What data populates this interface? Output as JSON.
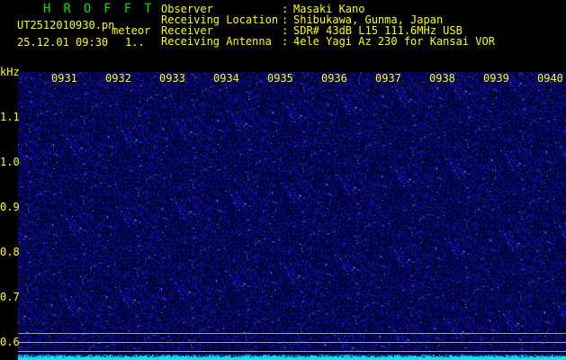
{
  "app_title": "HROFFT",
  "file_name": "UT2512010930.pn",
  "mode_label": "meteor",
  "datetime": "25.12.01 09:30",
  "count": "1..",
  "info": [
    {
      "label": "Observer",
      "value": "Masaki Kano"
    },
    {
      "label": "Receiving Location",
      "value": "Shibukawa, Gunma, Japan"
    },
    {
      "label": "Receiver",
      "value": "SDR# 43dB L15 111.6MHz USB"
    },
    {
      "label": "Receiving Antenna",
      "value": "4ele Yagi Az 230 for Kansai VOR"
    }
  ],
  "y_unit": "kHz",
  "y_ticks": [
    "1.1",
    "1.0",
    "0.9",
    "0.8",
    "0.7",
    "0.6"
  ],
  "time_ticks": [
    "0931",
    "0932",
    "0933",
    "0934",
    "0935",
    "0936",
    "0937",
    "0938",
    "0939",
    "0940"
  ],
  "colors": {
    "background": "#000000",
    "noise": "#1a1acc",
    "trace": "#00e8ff",
    "text": "#ffff00",
    "title": "#00e000"
  }
}
